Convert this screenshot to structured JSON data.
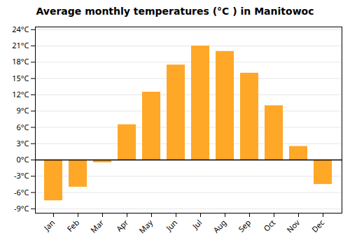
{
  "chart_data": {
    "type": "bar",
    "title": "Average monthly temperatures (°C ) in Manitowoc",
    "categories": [
      "Jan",
      "Feb",
      "Mar",
      "Apr",
      "May",
      "Jun",
      "Jul",
      "Aug",
      "Sep",
      "Oct",
      "Nov",
      "Dec"
    ],
    "values": [
      -7.5,
      -5.0,
      -0.5,
      6.5,
      12.5,
      17.5,
      21.0,
      20.0,
      16.0,
      10.0,
      2.5,
      -4.5
    ],
    "color": "#FFA726",
    "ylim": [
      -9.8,
      24.5
    ],
    "yticks": [
      {
        "value": -9,
        "label": "-9°C"
      },
      {
        "value": -6,
        "label": "-6°C"
      },
      {
        "value": -3,
        "label": "-3°C"
      },
      {
        "value": 0,
        "label": "0°C"
      },
      {
        "value": 3,
        "label": "3°C"
      },
      {
        "value": 6,
        "label": "6°C"
      },
      {
        "value": 9,
        "label": "9°C"
      },
      {
        "value": 12,
        "label": "12°C"
      },
      {
        "value": 15,
        "label": "15°C"
      },
      {
        "value": 18,
        "label": "18°C"
      },
      {
        "value": 21,
        "label": "21°C"
      },
      {
        "value": 24,
        "label": "24°C"
      }
    ],
    "grid": true
  }
}
